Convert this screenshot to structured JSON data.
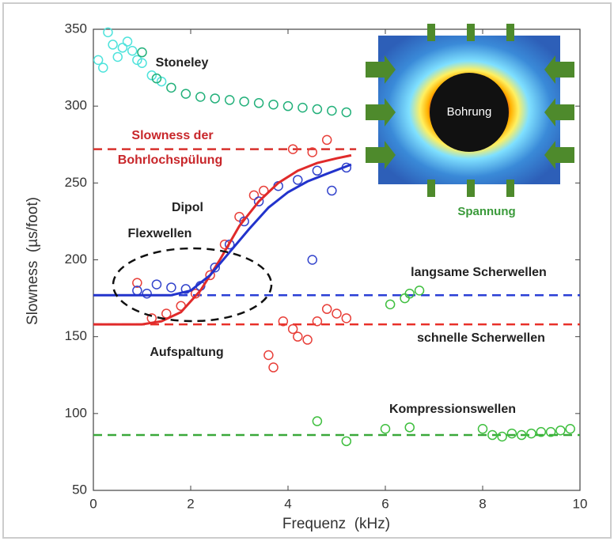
{
  "chart_data": {
    "type": "scatter",
    "xlabel": "Frequenz  (kHz)",
    "ylabel": "Slowness  (µs/foot)",
    "xlim": [
      0,
      10
    ],
    "xticks": [
      0,
      2,
      4,
      6,
      8,
      10
    ],
    "ylim": [
      50,
      350
    ],
    "yticks": [
      50,
      100,
      150,
      200,
      250,
      300,
      350
    ],
    "annotations": [
      "Stoneley",
      "Slowness der",
      "Bohrlochspülung",
      "Dipol",
      "Flexwellen",
      "langsame Scherwellen",
      "schnelle Scherwellen",
      "Aufspaltung",
      "Kompressionswellen",
      "Bohrung",
      "Spannung"
    ],
    "series": [
      {
        "style": "dashed",
        "color": "#d8302c",
        "x": [
          0,
          5.4
        ],
        "values": [
          272,
          272
        ]
      },
      {
        "style": "dashed",
        "color": "#2a3fd6",
        "x": [
          0,
          10
        ],
        "values": [
          177,
          177
        ]
      },
      {
        "style": "dashed",
        "color": "#e8302a",
        "x": [
          0,
          10
        ],
        "values": [
          158,
          158
        ]
      },
      {
        "style": "dashed",
        "color": "#3aa83a",
        "x": [
          0,
          10
        ],
        "values": [
          86,
          86
        ]
      },
      {
        "style": "markers",
        "color": "#4fe3dc",
        "x": [
          0.1,
          0.2,
          0.3,
          0.4,
          0.5,
          0.6,
          0.7,
          0.8,
          0.9,
          1.0,
          1.2,
          1.4
        ],
        "values": [
          330,
          325,
          348,
          340,
          332,
          338,
          342,
          336,
          330,
          328,
          320,
          316
        ]
      },
      {
        "style": "markers",
        "color": "#22b07a",
        "x": [
          1.0,
          1.3,
          1.6,
          1.9,
          2.2,
          2.5,
          2.8,
          3.1,
          3.4,
          3.7,
          4.0,
          4.3,
          4.6,
          4.9,
          5.2
        ],
        "values": [
          335,
          318,
          312,
          308,
          306,
          305,
          304,
          303,
          302,
          301,
          300,
          299,
          298,
          297,
          296
        ]
      },
      {
        "style": "markers",
        "color": "#e8403a",
        "x": [
          0.9,
          1.2,
          1.5,
          1.8,
          2.1,
          2.4,
          2.7,
          3.0,
          3.3,
          3.5,
          3.6,
          3.7,
          3.9,
          4.1,
          4.2,
          4.4,
          4.6,
          4.8,
          5.0,
          5.2,
          4.1,
          4.5,
          4.8
        ],
        "values": [
          185,
          162,
          165,
          170,
          178,
          190,
          210,
          228,
          242,
          245,
          138,
          130,
          160,
          155,
          150,
          148,
          160,
          168,
          165,
          162,
          272,
          270,
          278
        ]
      },
      {
        "style": "markers",
        "color": "#3344cc",
        "x": [
          0.9,
          1.1,
          1.3,
          1.6,
          1.9,
          2.2,
          2.5,
          2.8,
          3.1,
          3.4,
          3.8,
          4.2,
          4.5,
          4.6,
          4.9,
          5.2
        ],
        "values": [
          180,
          178,
          184,
          182,
          181,
          183,
          195,
          210,
          225,
          238,
          248,
          252,
          200,
          258,
          245,
          260
        ]
      },
      {
        "style": "line",
        "color": "#e02a2a",
        "x": [
          0,
          1.0,
          1.4,
          1.8,
          2.2,
          2.6,
          3.0,
          3.4,
          3.8,
          4.2,
          4.6,
          5.0,
          5.3
        ],
        "values": [
          158,
          158,
          160,
          166,
          180,
          200,
          222,
          238,
          250,
          258,
          263,
          266,
          268
        ]
      },
      {
        "style": "line",
        "color": "#2233cc",
        "x": [
          0,
          1.6,
          2.0,
          2.4,
          2.8,
          3.2,
          3.6,
          4.0,
          4.4,
          4.8,
          5.3
        ],
        "values": [
          177,
          177,
          180,
          190,
          205,
          220,
          234,
          244,
          251,
          256,
          262
        ]
      },
      {
        "style": "markers",
        "color": "#3fbf3f",
        "x": [
          4.6,
          5.2,
          6.0,
          6.5,
          8.0,
          8.2,
          8.4,
          8.6,
          8.8,
          9.0,
          9.2,
          9.4,
          9.6,
          9.8,
          6.1,
          6.4,
          6.5,
          6.7
        ],
        "values": [
          95,
          82,
          90,
          91,
          90,
          86,
          85,
          87,
          86,
          87,
          88,
          88,
          89,
          90,
          171,
          175,
          178,
          180
        ]
      }
    ]
  }
}
